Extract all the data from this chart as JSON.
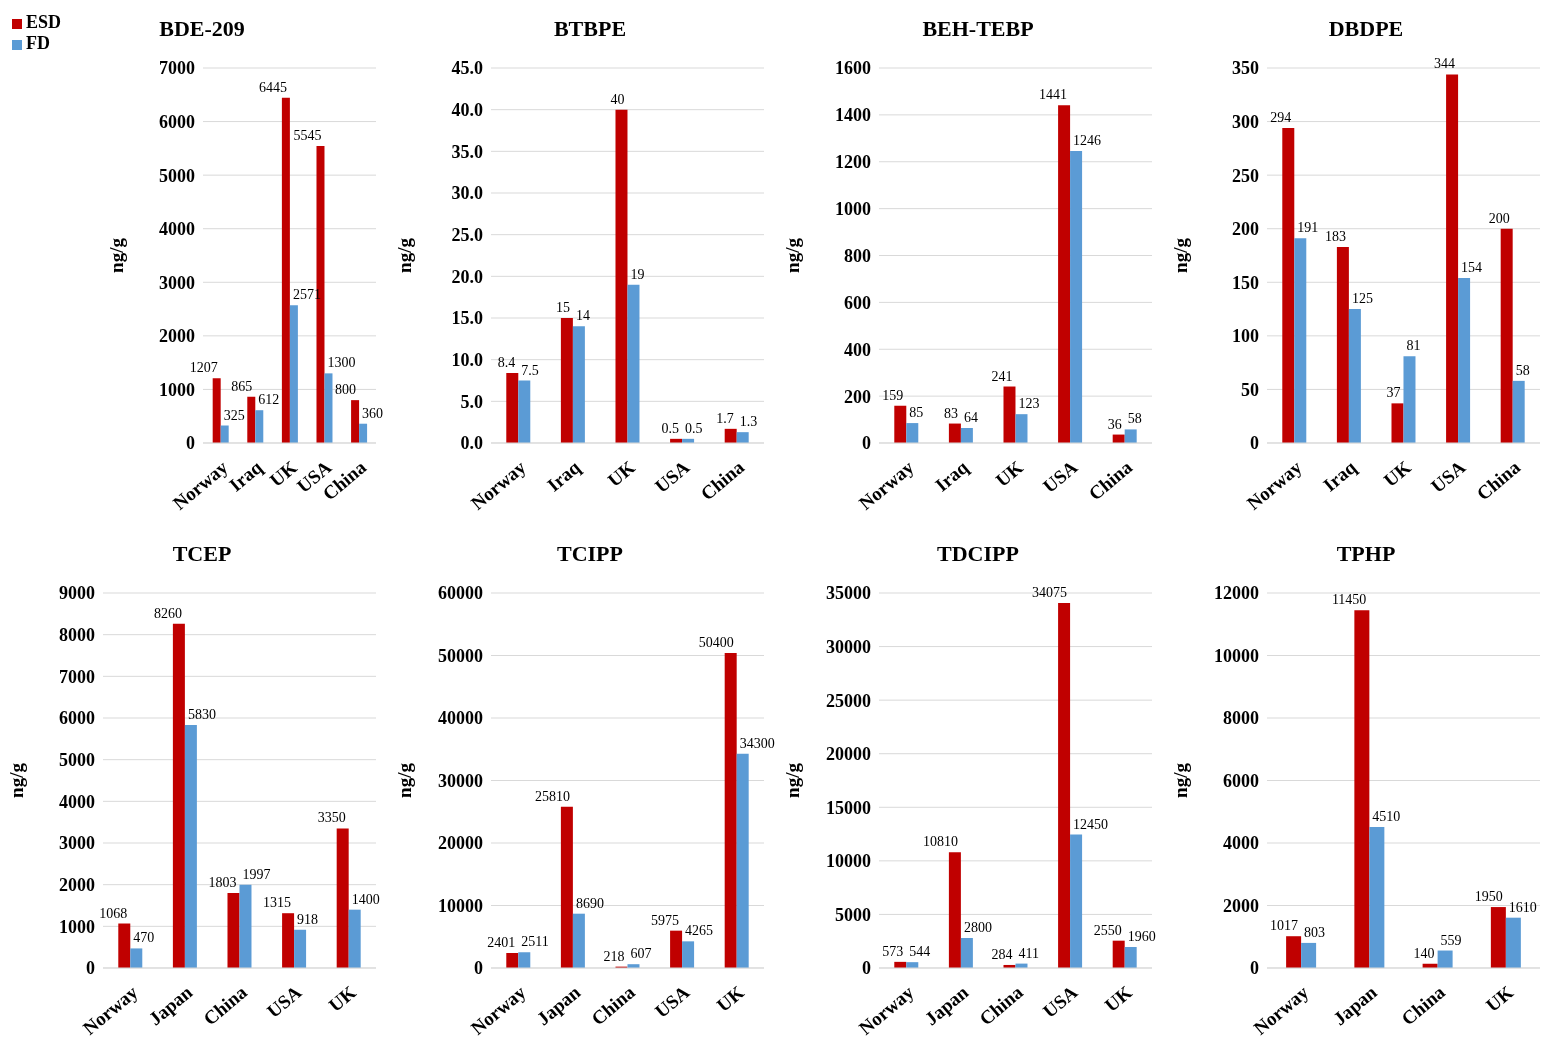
{
  "chart_data": [
    {
      "type": "bar",
      "title": "BDE-209",
      "ylabel": "ng/g",
      "categories": [
        "Norway",
        "Iraq",
        "UK",
        "USA",
        "China"
      ],
      "series": [
        {
          "name": "ESD",
          "color": "#c00000",
          "values": [
            1207,
            865,
            6445,
            5545,
            800
          ]
        },
        {
          "name": "FD",
          "color": "#5b9bd5",
          "values": [
            325,
            612,
            2571,
            1300,
            360
          ]
        }
      ],
      "ylim": [
        0,
        7000
      ],
      "yticks": [
        0,
        1000,
        2000,
        3000,
        4000,
        5000,
        6000,
        7000
      ],
      "grid": "y",
      "legend": "top left",
      "data_labels": true
    },
    {
      "type": "bar",
      "title": "BTBPE",
      "ylabel": "ng/g",
      "categories": [
        "Norway",
        "Iraq",
        "UK",
        "USA",
        "China"
      ],
      "series": [
        {
          "color": "#c00000",
          "values": [
            8.4,
            15,
            40,
            0.5,
            1.7
          ]
        },
        {
          "color": "#5b9bd5",
          "values": [
            7.5,
            14,
            19,
            0.5,
            1.3
          ]
        }
      ],
      "ylim": [
        0,
        45
      ],
      "yticks": [
        {
          "value": 0,
          "label": "0.0"
        },
        {
          "value": 5,
          "label": "5.0"
        },
        {
          "value": 10,
          "label": "10.0"
        },
        {
          "value": 15,
          "label": "15.0"
        },
        {
          "value": 20,
          "label": "20.0"
        },
        {
          "value": 25,
          "label": "25.0"
        },
        {
          "value": 30,
          "label": "30.0"
        },
        {
          "value": 35,
          "label": "35.0"
        },
        {
          "value": 40,
          "label": "40.0"
        },
        {
          "value": 45,
          "label": "45.0"
        }
      ],
      "grid": "y",
      "data_labels": true
    },
    {
      "type": "bar",
      "title": "BEH-TEBP",
      "ylabel": "ng/g",
      "categories": [
        "Norway",
        "Iraq",
        "UK",
        "USA",
        "China"
      ],
      "series": [
        {
          "color": "#c00000",
          "values": [
            159,
            83,
            241,
            1441,
            36
          ]
        },
        {
          "color": "#5b9bd5",
          "values": [
            85,
            64,
            123,
            1246,
            58
          ]
        }
      ],
      "ylim": [
        0,
        1600
      ],
      "yticks": [
        0,
        200,
        400,
        600,
        800,
        1000,
        1200,
        1400,
        1600
      ],
      "grid": "y",
      "data_labels": true
    },
    {
      "type": "bar",
      "title": "DBDPE",
      "ylabel": "ng/g",
      "categories": [
        "Norway",
        "Iraq",
        "UK",
        "USA",
        "China"
      ],
      "series": [
        {
          "color": "#c00000",
          "values": [
            294,
            183,
            37,
            344,
            200
          ]
        },
        {
          "color": "#5b9bd5",
          "values": [
            191,
            125,
            81,
            154,
            58
          ]
        }
      ],
      "ylim": [
        0,
        350
      ],
      "yticks": [
        0,
        50,
        100,
        150,
        200,
        250,
        300,
        350
      ],
      "grid": "y",
      "data_labels": true
    },
    {
      "type": "bar",
      "title": "TCEP",
      "ylabel": "ng/g",
      "categories": [
        "Norway",
        "Japan",
        "China",
        "USA",
        "UK"
      ],
      "series": [
        {
          "color": "#c00000",
          "values": [
            1068,
            8260,
            1803,
            1315,
            3350
          ]
        },
        {
          "color": "#5b9bd5",
          "values": [
            470,
            5830,
            1997,
            918,
            1400
          ]
        }
      ],
      "ylim": [
        0,
        9000
      ],
      "yticks": [
        0,
        1000,
        2000,
        3000,
        4000,
        5000,
        6000,
        7000,
        8000,
        9000
      ],
      "grid": "y",
      "data_labels": true
    },
    {
      "type": "bar",
      "title": "TCIPP",
      "ylabel": "ng/g",
      "categories": [
        "Norway",
        "Japan",
        "China",
        "USA",
        "UK"
      ],
      "series": [
        {
          "color": "#c00000",
          "values": [
            2401,
            25810,
            218,
            5975,
            50400
          ]
        },
        {
          "color": "#5b9bd5",
          "values": [
            2511,
            8690,
            607,
            4265,
            34300
          ]
        }
      ],
      "ylim": [
        0,
        60000
      ],
      "yticks": [
        0,
        10000,
        20000,
        30000,
        40000,
        50000,
        60000
      ],
      "grid": "y",
      "data_labels": true
    },
    {
      "type": "bar",
      "title": "TDCIPP",
      "ylabel": "ng/g",
      "categories": [
        "Norway",
        "Japan",
        "China",
        "USA",
        "UK"
      ],
      "series": [
        {
          "color": "#c00000",
          "values": [
            573,
            10810,
            284,
            34075,
            2550
          ]
        },
        {
          "color": "#5b9bd5",
          "values": [
            544,
            2800,
            411,
            12450,
            1960
          ]
        }
      ],
      "ylim": [
        0,
        35000
      ],
      "yticks": [
        0,
        5000,
        10000,
        15000,
        20000,
        25000,
        30000,
        35000
      ],
      "grid": "y",
      "data_labels": true
    },
    {
      "type": "bar",
      "title": "TPHP",
      "ylabel": "ng/g",
      "categories": [
        "Norway",
        "Japan",
        "China",
        "UK"
      ],
      "series": [
        {
          "color": "#c00000",
          "values": [
            1017,
            11450,
            140,
            1950
          ]
        },
        {
          "color": "#5b9bd5",
          "values": [
            803,
            4510,
            559,
            1610
          ]
        }
      ],
      "ylim": [
        0,
        12000
      ],
      "yticks": [
        0,
        2000,
        4000,
        6000,
        8000,
        10000,
        12000
      ],
      "grid": "y",
      "data_labels": true
    }
  ]
}
